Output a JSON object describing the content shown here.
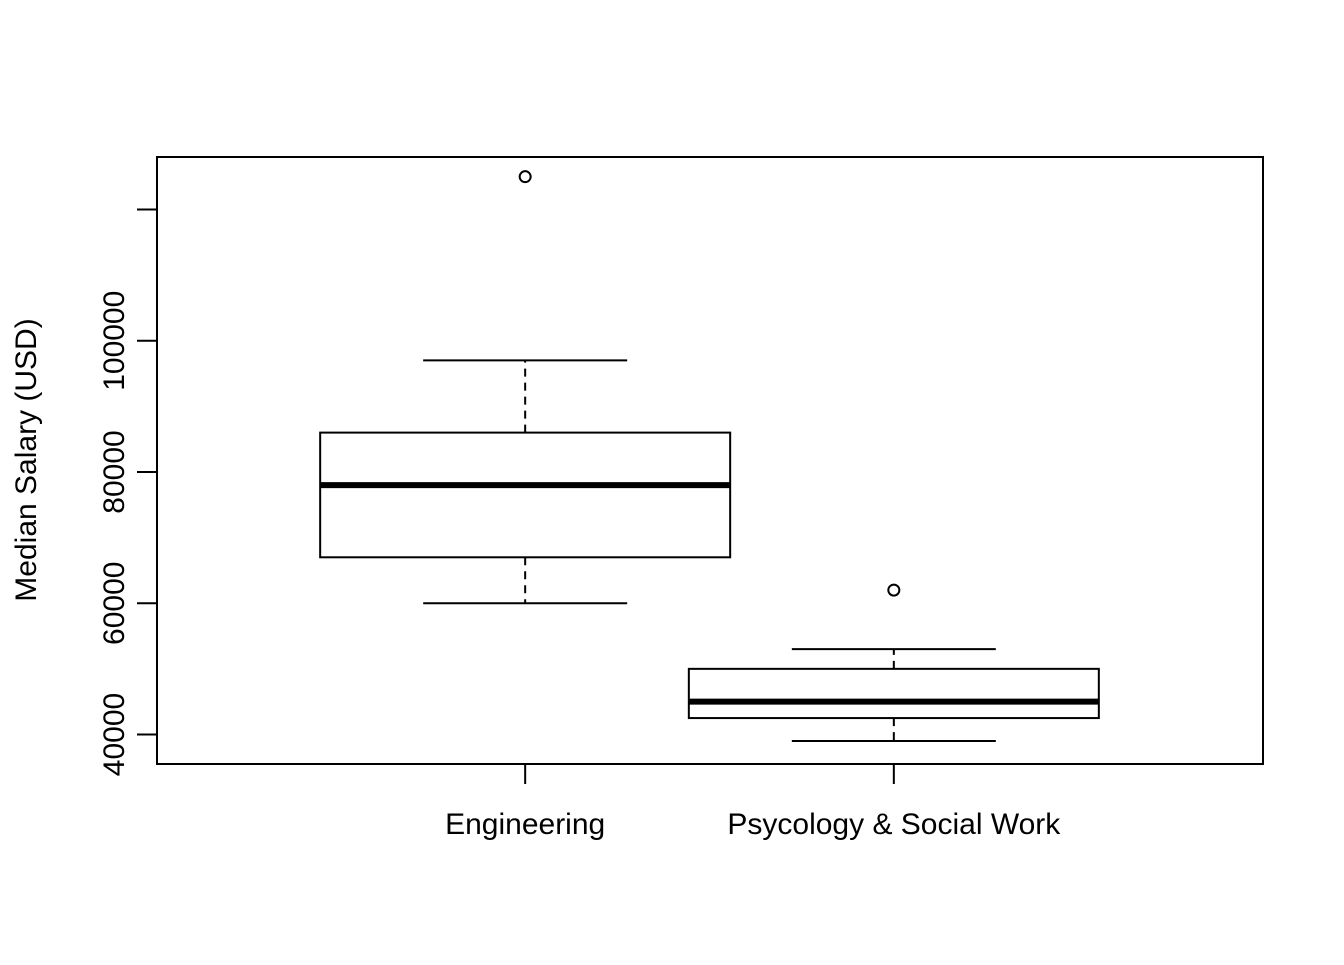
{
  "chart_data": {
    "type": "boxplot",
    "title": "",
    "xlabel": "",
    "ylabel": "Median Salary (USD)",
    "ylim": [
      35500,
      128000
    ],
    "yticks": [
      40000,
      60000,
      80000,
      100000,
      120000
    ],
    "ytick_labels": [
      "40000",
      "60000",
      "80000",
      "100000",
      ""
    ],
    "grid": false,
    "categories": [
      "Engineering",
      "Psycology & Social Work"
    ],
    "boxes": [
      {
        "category": "Engineering",
        "whisker_low": 60000,
        "q1": 67000,
        "median": 78000,
        "q3": 86000,
        "whisker_high": 97000,
        "outliers": [
          125000
        ]
      },
      {
        "category": "Psycology & Social Work",
        "whisker_low": 39000,
        "q1": 42500,
        "median": 45000,
        "q3": 50000,
        "whisker_high": 53000,
        "outliers": [
          62000
        ]
      }
    ]
  }
}
